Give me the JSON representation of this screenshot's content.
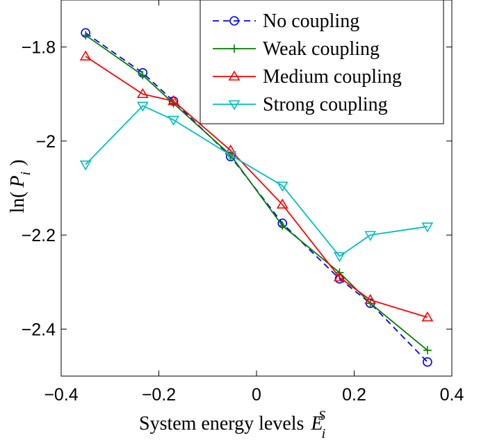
{
  "chart_data": {
    "type": "line",
    "xlabel": "System energy levels",
    "xlabel_symbol": "E",
    "xlabel_sub": "i",
    "xlabel_sup": "S",
    "ylabel_prefix": "ln(",
    "ylabel_symbol": "P",
    "ylabel_sub": "i",
    "ylabel_suffix": ")",
    "xlim": [
      -0.4,
      0.4
    ],
    "ylim": [
      -2.5,
      -1.7
    ],
    "xticks": [
      -0.4,
      -0.2,
      0,
      0.2,
      0.4
    ],
    "xtick_labels": [
      "−0.4",
      "−0.2",
      "0",
      "0.2",
      "0.4"
    ],
    "yticks": [
      -2.4,
      -2.2,
      -2.0,
      -1.8
    ],
    "ytick_labels": [
      "−2.4",
      "−2.2",
      "−2",
      "−1.8"
    ],
    "grid": false,
    "legend_position": "top-right",
    "x": [
      -0.35,
      -0.233,
      -0.17,
      -0.053,
      0.053,
      0.17,
      0.233,
      0.35
    ],
    "series": [
      {
        "name": "No coupling",
        "color": "#0000ff",
        "dash": "dashed",
        "marker": "circle",
        "values": [
          -1.77,
          -1.855,
          -1.915,
          -2.033,
          -2.175,
          -2.293,
          -2.345,
          -2.47
        ]
      },
      {
        "name": "Weak coupling",
        "color": "#007f00",
        "dash": "solid",
        "marker": "plus",
        "values": [
          -1.775,
          -1.86,
          -1.92,
          -2.03,
          -2.18,
          -2.28,
          -2.345,
          -2.445
        ]
      },
      {
        "name": "Medium coupling",
        "color": "#ff0000",
        "dash": "solid",
        "marker": "triangle-up",
        "values": [
          -1.82,
          -1.9,
          -1.915,
          -2.02,
          -2.135,
          -2.29,
          -2.338,
          -2.375
        ]
      },
      {
        "name": "Strong coupling",
        "color": "#00bfbf",
        "dash": "solid",
        "marker": "triangle-down",
        "values": [
          -2.05,
          -1.925,
          -1.955,
          -2.03,
          -2.095,
          -2.245,
          -2.2,
          -2.182
        ]
      }
    ]
  }
}
